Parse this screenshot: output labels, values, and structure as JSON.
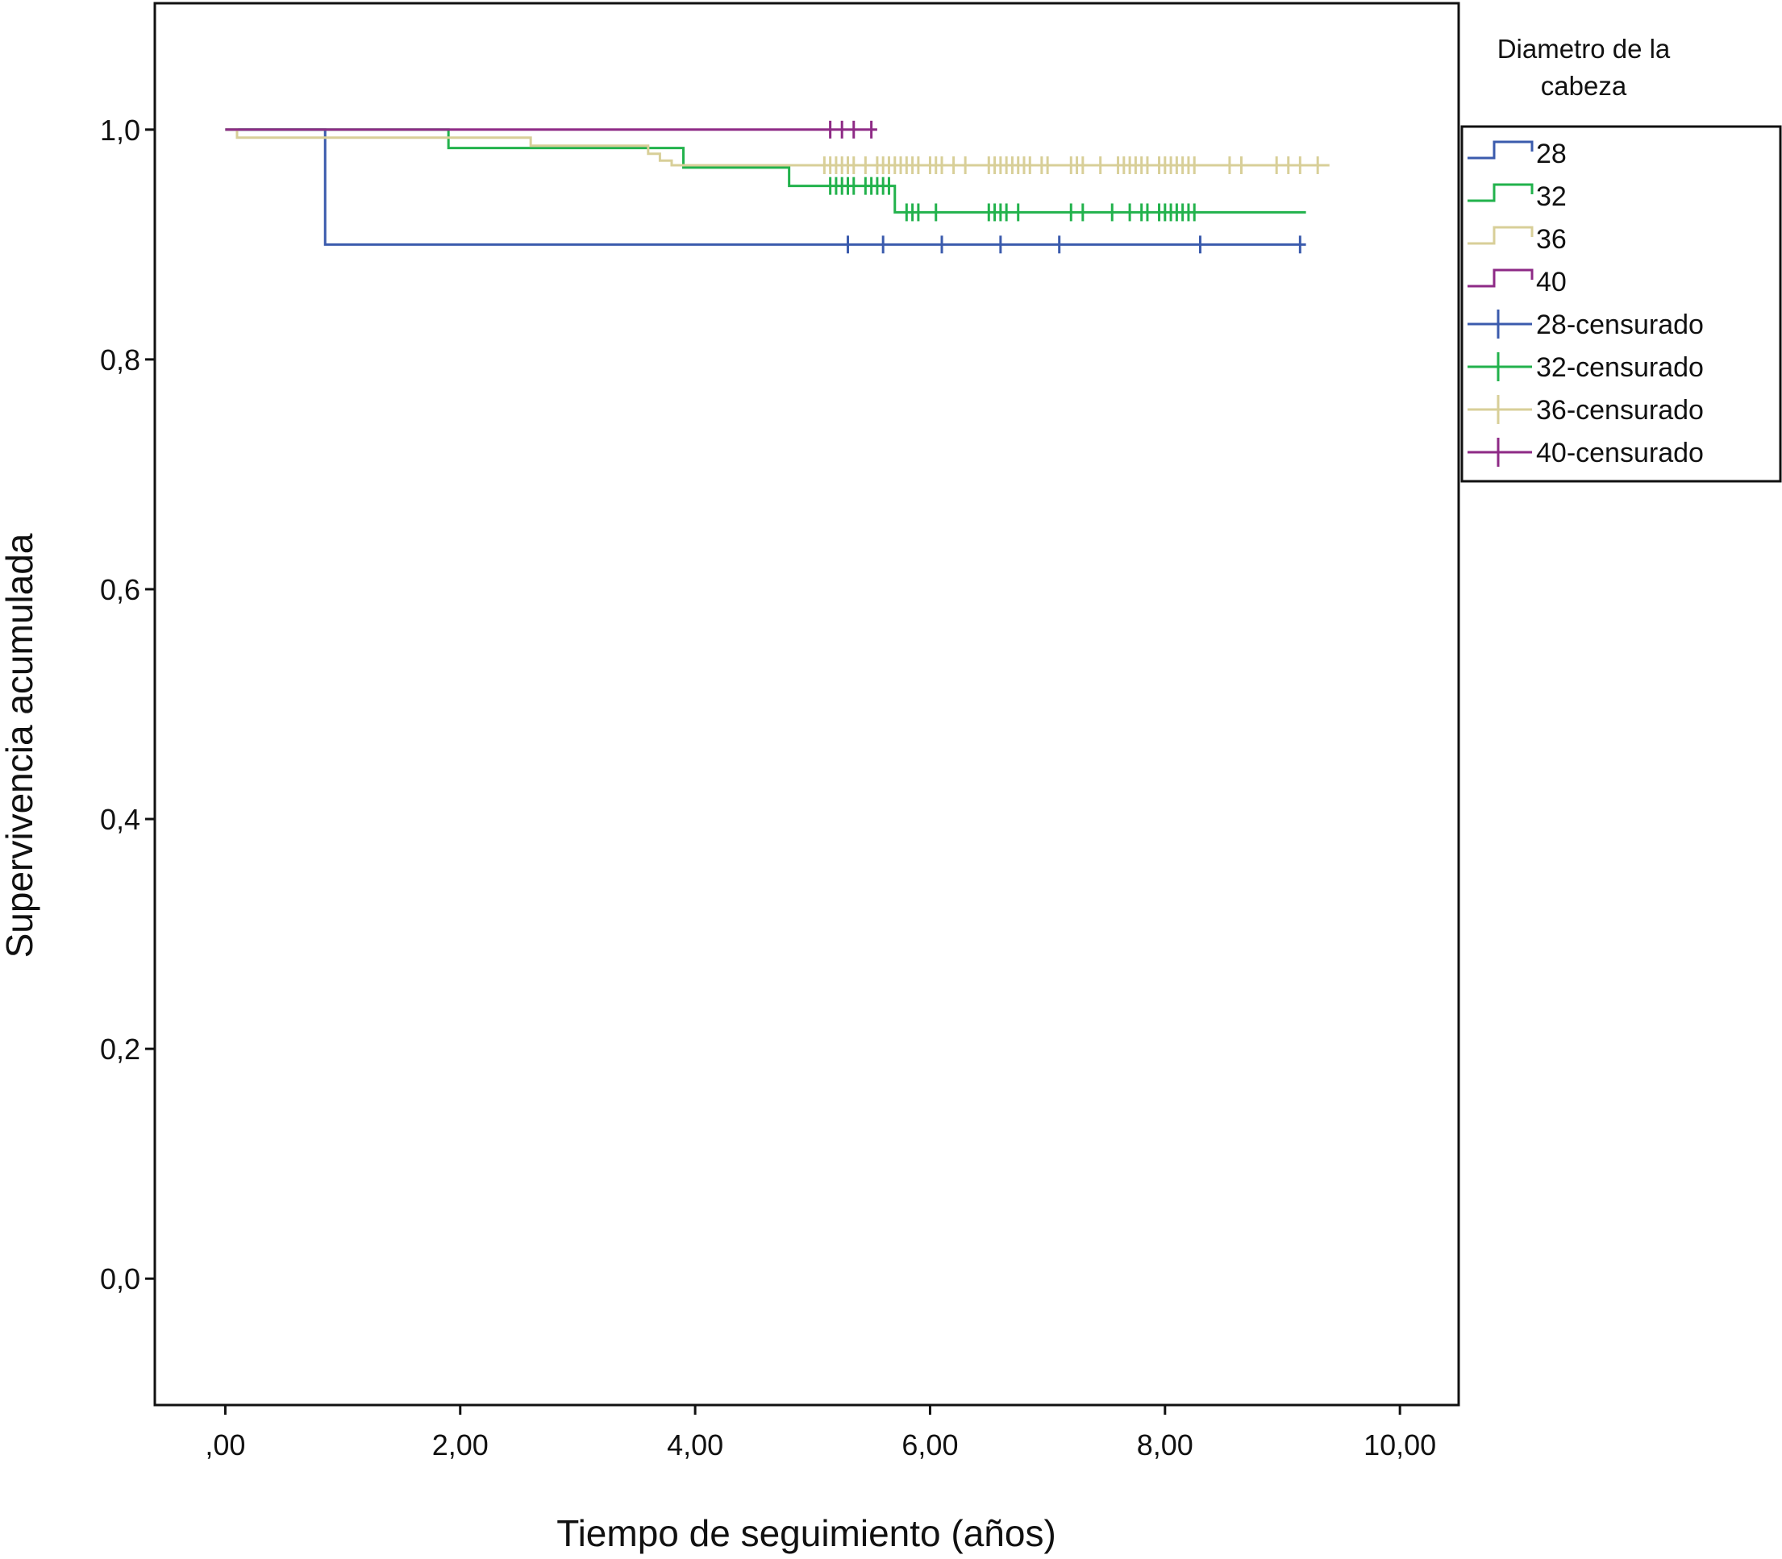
{
  "chart_data": {
    "type": "line",
    "subtype": "kaplan-meier",
    "title": "",
    "xlabel": "Tiempo de seguimiento (años)",
    "ylabel": "Supervivencia acumulada",
    "xlim": [
      -0.6,
      10.5
    ],
    "ylim": [
      -0.11,
      1.11
    ],
    "x_ticks": [
      0,
      2,
      4,
      6,
      8,
      10
    ],
    "x_tick_labels": [
      ",00",
      "2,00",
      "4,00",
      "6,00",
      "8,00",
      "10,00"
    ],
    "y_ticks": [
      0,
      0.2,
      0.4,
      0.6,
      0.8,
      1.0
    ],
    "y_tick_labels": [
      "0,0",
      "0,2",
      "0,4",
      "0,6",
      "0,8",
      "1,0"
    ],
    "grid": false,
    "legend": {
      "title": "Diametro de la cabeza",
      "title_lines": [
        "Diametro de la",
        "cabeza"
      ],
      "placement": "right",
      "entries": [
        {
          "label": "28",
          "kind": "step",
          "color": "#3b5bad"
        },
        {
          "label": "32",
          "kind": "step",
          "color": "#22b24c"
        },
        {
          "label": "36",
          "kind": "step",
          "color": "#d8cf98"
        },
        {
          "label": "40",
          "kind": "step",
          "color": "#8e2a86"
        },
        {
          "label": "28-censurado",
          "kind": "censor",
          "color": "#3b5bad"
        },
        {
          "label": "32-censurado",
          "kind": "censor",
          "color": "#22b24c"
        },
        {
          "label": "36-censurado",
          "kind": "censor",
          "color": "#d8cf98"
        },
        {
          "label": "40-censurado",
          "kind": "censor",
          "color": "#8e2a86"
        }
      ]
    },
    "series": [
      {
        "name": "28",
        "color": "#3b5bad",
        "steps": [
          [
            0.0,
            1.0
          ],
          [
            0.85,
            0.9
          ],
          [
            9.2,
            0.9
          ]
        ],
        "censored": [
          5.3,
          5.6,
          6.1,
          6.6,
          7.1,
          8.3,
          9.15
        ]
      },
      {
        "name": "32",
        "color": "#22b24c",
        "steps": [
          [
            0.0,
            1.0
          ],
          [
            1.9,
            0.984
          ],
          [
            3.9,
            0.967
          ],
          [
            4.8,
            0.951
          ],
          [
            5.7,
            0.928
          ],
          [
            9.2,
            0.928
          ]
        ],
        "censored": [
          5.15,
          5.2,
          5.25,
          5.3,
          5.35,
          5.45,
          5.5,
          5.55,
          5.6,
          5.65,
          5.8,
          5.85,
          5.9,
          6.05,
          6.5,
          6.55,
          6.6,
          6.65,
          6.75,
          7.2,
          7.3,
          7.55,
          7.7,
          7.8,
          7.85,
          7.95,
          8.0,
          8.05,
          8.1,
          8.15,
          8.2,
          8.25
        ]
      },
      {
        "name": "36",
        "color": "#d8cf98",
        "steps": [
          [
            0.0,
            1.0
          ],
          [
            0.1,
            0.993
          ],
          [
            2.6,
            0.986
          ],
          [
            3.6,
            0.979
          ],
          [
            3.7,
            0.973
          ],
          [
            3.8,
            0.969
          ],
          [
            9.4,
            0.969
          ]
        ],
        "censored": [
          5.1,
          5.15,
          5.2,
          5.25,
          5.3,
          5.35,
          5.45,
          5.55,
          5.6,
          5.65,
          5.7,
          5.75,
          5.8,
          5.85,
          5.9,
          6.0,
          6.05,
          6.1,
          6.2,
          6.3,
          6.5,
          6.55,
          6.6,
          6.65,
          6.7,
          6.75,
          6.8,
          6.85,
          6.95,
          7.0,
          7.2,
          7.25,
          7.3,
          7.45,
          7.6,
          7.65,
          7.7,
          7.75,
          7.8,
          7.85,
          7.95,
          8.0,
          8.05,
          8.1,
          8.15,
          8.2,
          8.25,
          8.55,
          8.65,
          8.95,
          9.05,
          9.15,
          9.3
        ]
      },
      {
        "name": "40",
        "color": "#8e2a86",
        "steps": [
          [
            0.0,
            1.0
          ],
          [
            5.55,
            1.0
          ]
        ],
        "censored": [
          5.15,
          5.25,
          5.35,
          5.5
        ]
      }
    ]
  }
}
